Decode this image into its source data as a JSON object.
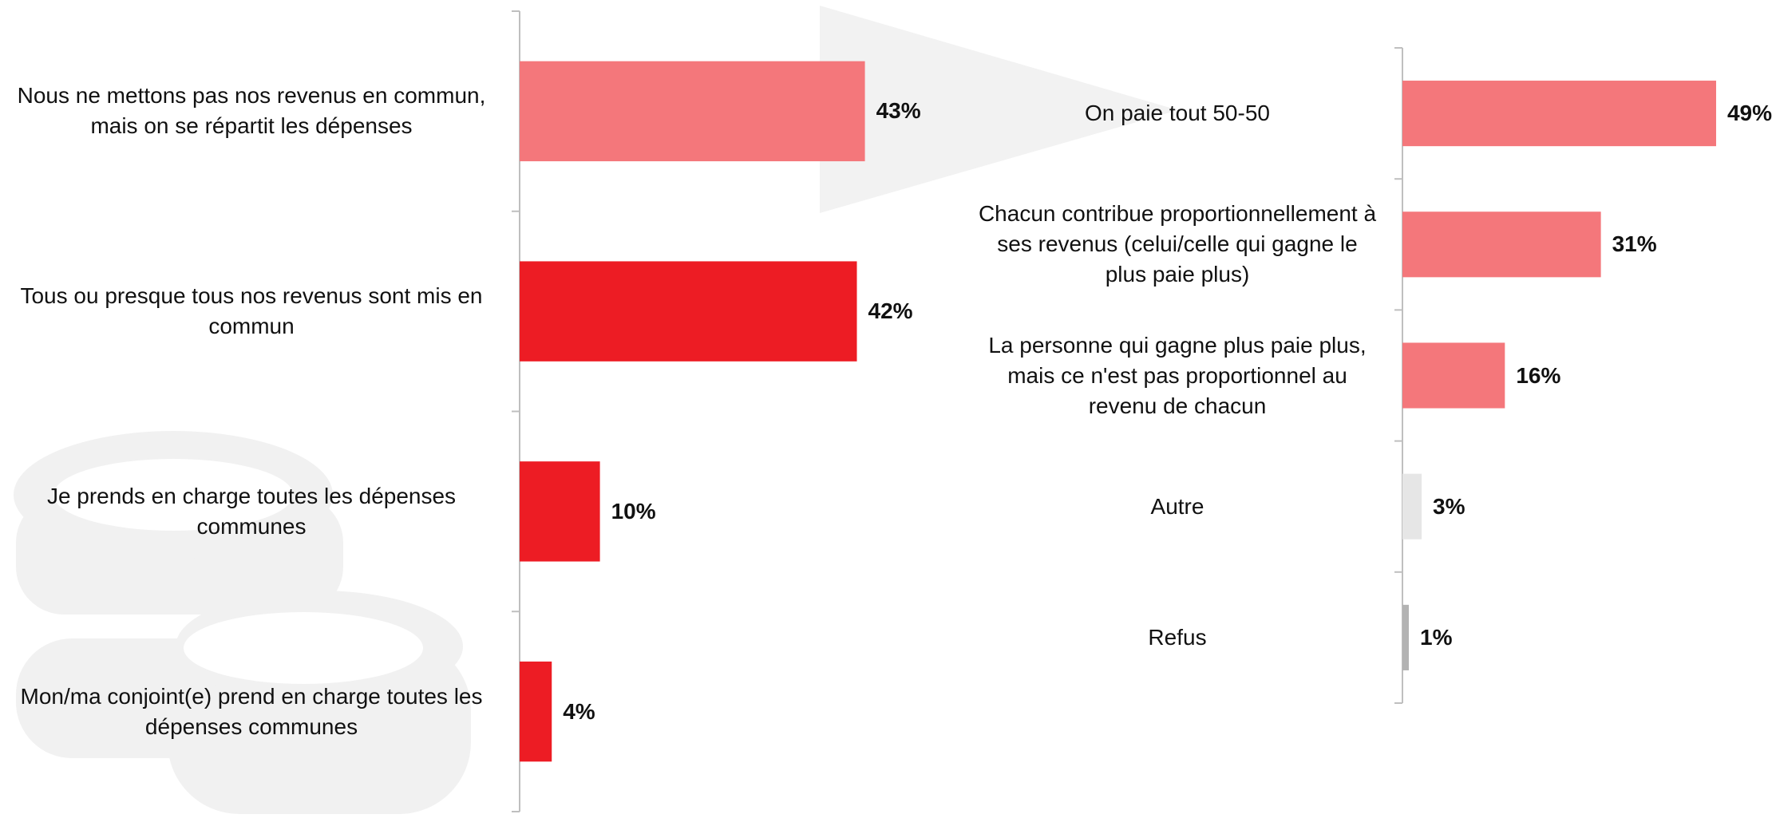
{
  "chart_data": [
    {
      "type": "bar",
      "orientation": "horizontal",
      "categories": [
        "Nous ne mettons pas nos revenus en commun, mais on se répartit les dépenses",
        "Tous ou presque tous nos revenus sont mis en commun",
        "Je prends en charge toutes les dépenses communes",
        "Mon/ma conjoint(e) prend en charge toutes les dépenses communes"
      ],
      "values": [
        43,
        42,
        10,
        4
      ],
      "value_labels": [
        "43%",
        "42%",
        "10%",
        "4%"
      ],
      "colors": [
        "#f4777b",
        "#ed1c24",
        "#ed1c24",
        "#ed1c24"
      ],
      "xlim": [
        0,
        100
      ]
    },
    {
      "type": "bar",
      "orientation": "horizontal",
      "categories": [
        "On paie tout 50-50",
        "Chacun contribue proportionnellement à ses revenus (celui/celle qui gagne le plus paie plus)",
        "La personne qui gagne plus paie plus, mais ce n'est pas proportionnel au revenu de chacun",
        "Autre",
        "Refus"
      ],
      "values": [
        49,
        31,
        16,
        3,
        1
      ],
      "value_labels": [
        "49%",
        "31%",
        "16%",
        "3%",
        "1%"
      ],
      "colors": [
        "#f4777b",
        "#f4777b",
        "#f4777b",
        "#e6e6e6",
        "#b3b3b3"
      ],
      "xlim": [
        0,
        100
      ]
    }
  ]
}
